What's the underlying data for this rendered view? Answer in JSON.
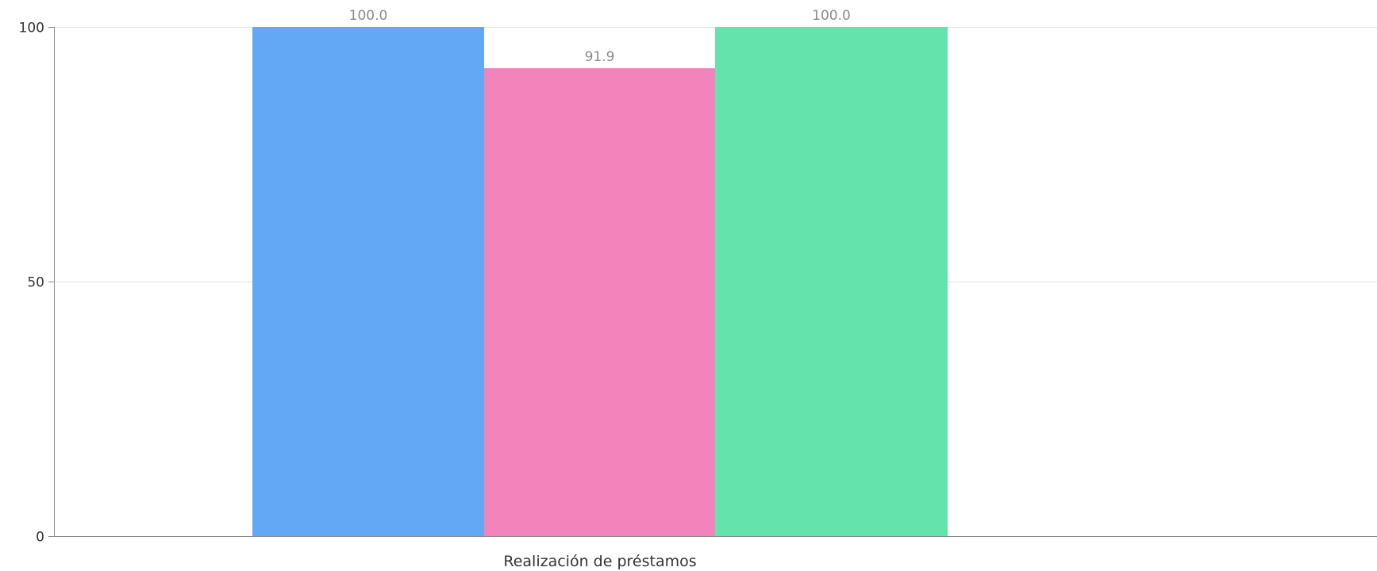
{
  "chart_data": {
    "type": "bar",
    "categories": [
      "Realización de préstamos"
    ],
    "series": [
      {
        "values": [
          100.0
        ],
        "color": "#62a8f5"
      },
      {
        "values": [
          91.9
        ],
        "color": "#f283bb"
      },
      {
        "values": [
          100.0
        ],
        "color": "#65e3ac"
      }
    ],
    "data_labels": [
      "100.0",
      "91.9",
      "100.0"
    ],
    "ylim": [
      0,
      100
    ],
    "yticks": [
      0,
      50,
      100
    ],
    "ytick_labels": [
      "0",
      "50",
      "100"
    ],
    "grid": true,
    "legend": "none",
    "colors": {
      "grid": "#e2e2e2",
      "axis": "#8c8c8c",
      "tick_text": "#333333",
      "data_label_text": "#8a8a8a"
    }
  }
}
